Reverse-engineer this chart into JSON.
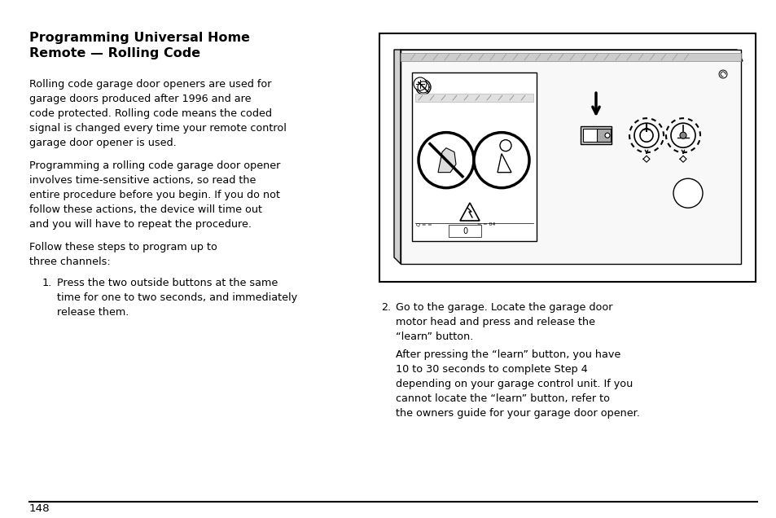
{
  "bg_color": "#ffffff",
  "title": "Programming Universal Home\nRemote — Rolling Code",
  "para1": "Rolling code garage door openers are used for\ngarage doors produced after 1996 and are\ncode protected. Rolling code means the coded\nsignal is changed every time your remote control\ngarage door opener is used.",
  "para2": "Programming a rolling code garage door opener\ninvolves time-sensitive actions, so read the\nentire procedure before you begin. If you do not\nfollow these actions, the device will time out\nand you will have to repeat the procedure.",
  "para3": "Follow these steps to program up to\nthree channels:",
  "step1_label": "1.",
  "step1_text": "Press the two outside buttons at the same\ntime for one to two seconds, and immediately\nrelease them.",
  "step2_label": "2.",
  "step2_text": "Go to the garage. Locate the garage door\nmotor head and press and release the\n“learn” button.",
  "step2_extra": "After pressing the “learn” button, you have\n10 to 30 seconds to complete Step 4\ndepending on your garage control unit. If you\ncannot locate the “learn” button, refer to\nthe owners guide for your garage door opener.",
  "page_number": "148",
  "font_size_title": 11.5,
  "font_size_body": 9.2,
  "text_color": "#000000"
}
